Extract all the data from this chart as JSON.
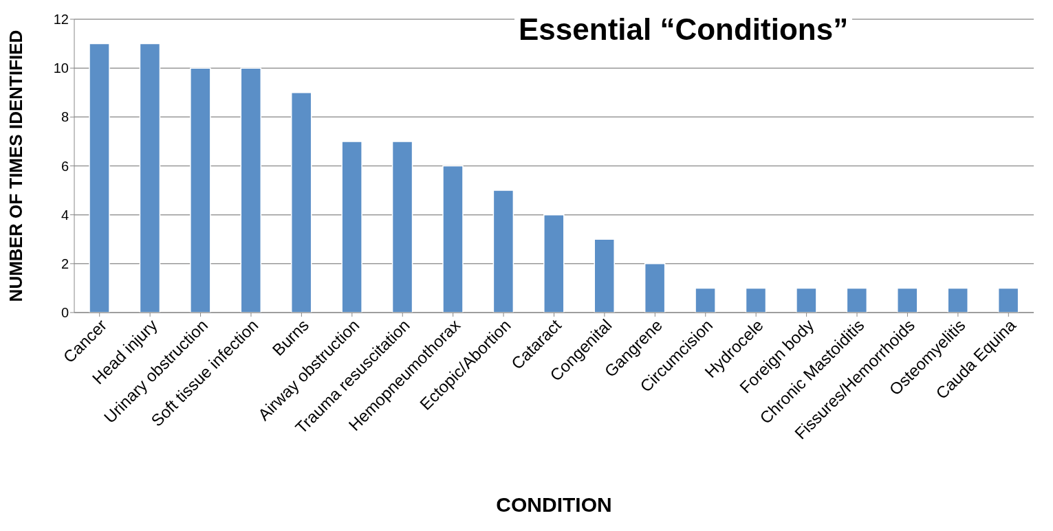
{
  "chart_data": {
    "type": "bar",
    "title": "Essential “Conditions”",
    "xlabel": "CONDITION",
    "ylabel": "NUMBER OF TIMES IDENTIFIED",
    "categories": [
      "Cancer",
      "Head injury",
      "Urinary obstruction",
      "Soft tissue infection",
      "Burns",
      "Airway obstruction",
      "Trauma resuscitation",
      "Hemopneumothorax",
      "Ectopic/Abortion",
      "Cataract",
      "Congenital",
      "Gangrene",
      "Circumcision",
      "Hydrocele",
      "Foreign body",
      "Chronic Mastoiditis",
      "Fissures/Hemorrhoids",
      "Osteomyelitis",
      "Cauda Equina"
    ],
    "values": [
      11,
      11,
      10,
      10,
      9,
      7,
      7,
      6,
      5,
      4,
      3,
      2,
      1,
      1,
      1,
      1,
      1,
      1,
      1
    ],
    "color": "#5b8fc7",
    "ylim": [
      0,
      12
    ],
    "yticks": [
      0,
      2,
      4,
      6,
      8,
      10,
      12
    ],
    "grid": "y"
  }
}
